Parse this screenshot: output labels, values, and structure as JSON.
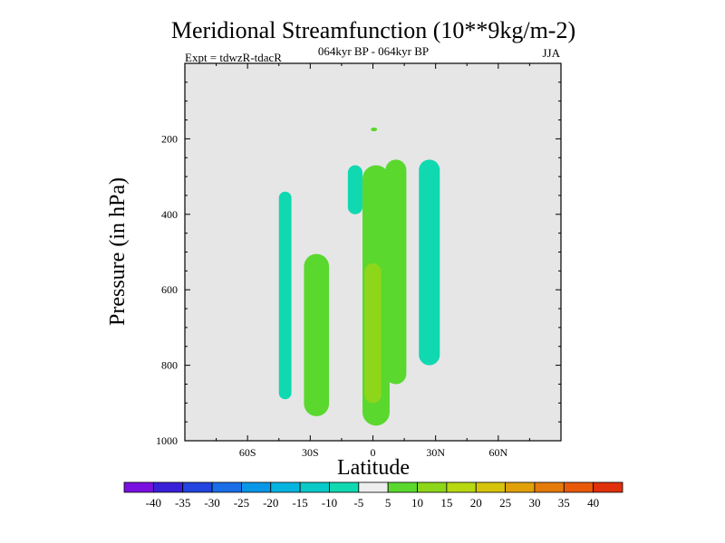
{
  "chart_data": {
    "type": "heatmap",
    "title": "Meridional Streamfunction (10**9kg/m-2)",
    "subtitle": "064kyr BP - 064kyr BP",
    "left_label": "Expt = tdwzR-tdacR",
    "right_label": "JJA",
    "xlabel": "Latitude",
    "ylabel": "Pressure (in hPa)",
    "xlim": [
      -90,
      90
    ],
    "ylim": [
      0,
      1000
    ],
    "y_axis_inverted": true,
    "x_ticks": [
      {
        "value": -60,
        "label": "60S"
      },
      {
        "value": -30,
        "label": "30S"
      },
      {
        "value": 0,
        "label": "0"
      },
      {
        "value": 30,
        "label": "30N"
      },
      {
        "value": 60,
        "label": "60N"
      }
    ],
    "y_ticks": [
      {
        "value": 200,
        "label": "200"
      },
      {
        "value": 400,
        "label": "400"
      },
      {
        "value": 600,
        "label": "600"
      },
      {
        "value": 800,
        "label": "800"
      },
      {
        "value": 1000,
        "label": "1000"
      }
    ],
    "levels": [
      -40,
      -35,
      -30,
      -25,
      -20,
      -15,
      -10,
      -5,
      5,
      10,
      15,
      20,
      25,
      30,
      35,
      40
    ],
    "colorbar_colors": [
      "#7a10e0",
      "#3a1fd8",
      "#2244e0",
      "#1a6ee8",
      "#0a96e6",
      "#06b4e0",
      "#0acac8",
      "#10d8b0",
      "#eeeeee",
      "#5ad82e",
      "#8ed61a",
      "#b8d812",
      "#d6c40c",
      "#e0a00a",
      "#e47a0a",
      "#e85a0a",
      "#e0300c"
    ],
    "background_color": "#e6e6e6",
    "regions": [
      {
        "name": "region-neg-60s",
        "class": "-10..-5",
        "color": "#10d8b0",
        "lat": [
          -45,
          -39
        ],
        "p": [
          340,
          890
        ]
      },
      {
        "name": "region-pos-30s",
        "class": "5..10",
        "color": "#5ad82e",
        "lat": [
          -33,
          -21
        ],
        "p": [
          505,
          935
        ]
      },
      {
        "name": "region-neg-10s",
        "class": "-10..-5",
        "color": "#10d8b0",
        "lat": [
          -12,
          -5
        ],
        "p": [
          270,
          400
        ]
      },
      {
        "name": "region-pos-equator",
        "class": "5..10",
        "color": "#5ad82e",
        "lat": [
          -5,
          8
        ],
        "p": [
          270,
          960
        ]
      },
      {
        "name": "region-pos-equator-core",
        "class": "10..15",
        "color": "#8ed61a",
        "lat": [
          -4,
          4
        ],
        "p": [
          530,
          900
        ]
      },
      {
        "name": "region-pos-10n",
        "class": "5..10",
        "color": "#5ad82e",
        "lat": [
          6,
          16
        ],
        "p": [
          255,
          850
        ]
      },
      {
        "name": "region-neg-25n",
        "class": "-10..-5",
        "color": "#10d8b0",
        "lat": [
          22,
          32
        ],
        "p": [
          255,
          800
        ]
      },
      {
        "name": "region-speck-200",
        "class": "5..10",
        "color": "#5ad82e",
        "lat": [
          -1,
          2
        ],
        "p": [
          170,
          180
        ]
      }
    ]
  }
}
